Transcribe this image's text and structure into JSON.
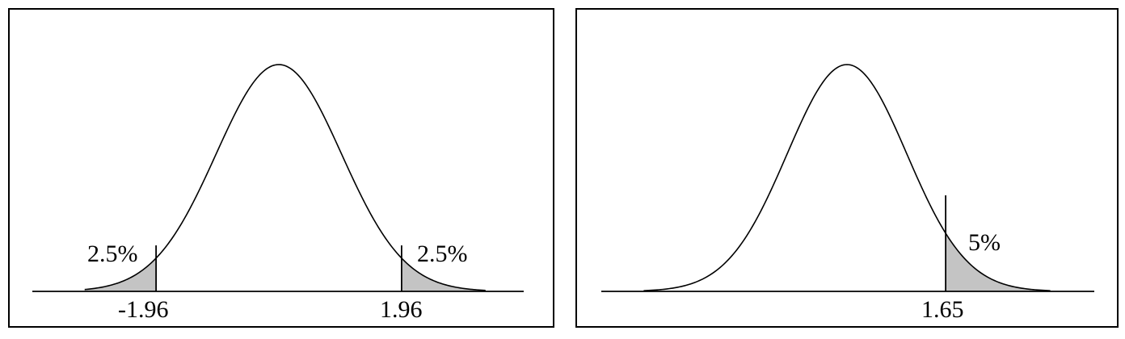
{
  "panels": [
    {
      "id": "two-tailed",
      "shaded_tails": [
        "left",
        "right"
      ],
      "tail_labels": {
        "left": "2.5%",
        "right": "2.5%"
      },
      "critical_values": {
        "left": "-1.96",
        "right": "1.96"
      },
      "critical_z": [
        -1.96,
        1.96
      ]
    },
    {
      "id": "one-tailed",
      "shaded_tails": [
        "right"
      ],
      "tail_labels": {
        "right": "5%"
      },
      "critical_values": {
        "right": "1.65"
      },
      "critical_z": [
        1.65
      ]
    }
  ],
  "colors": {
    "shading": "#c4c4c4",
    "ink": "#000000",
    "background": "#ffffff"
  }
}
